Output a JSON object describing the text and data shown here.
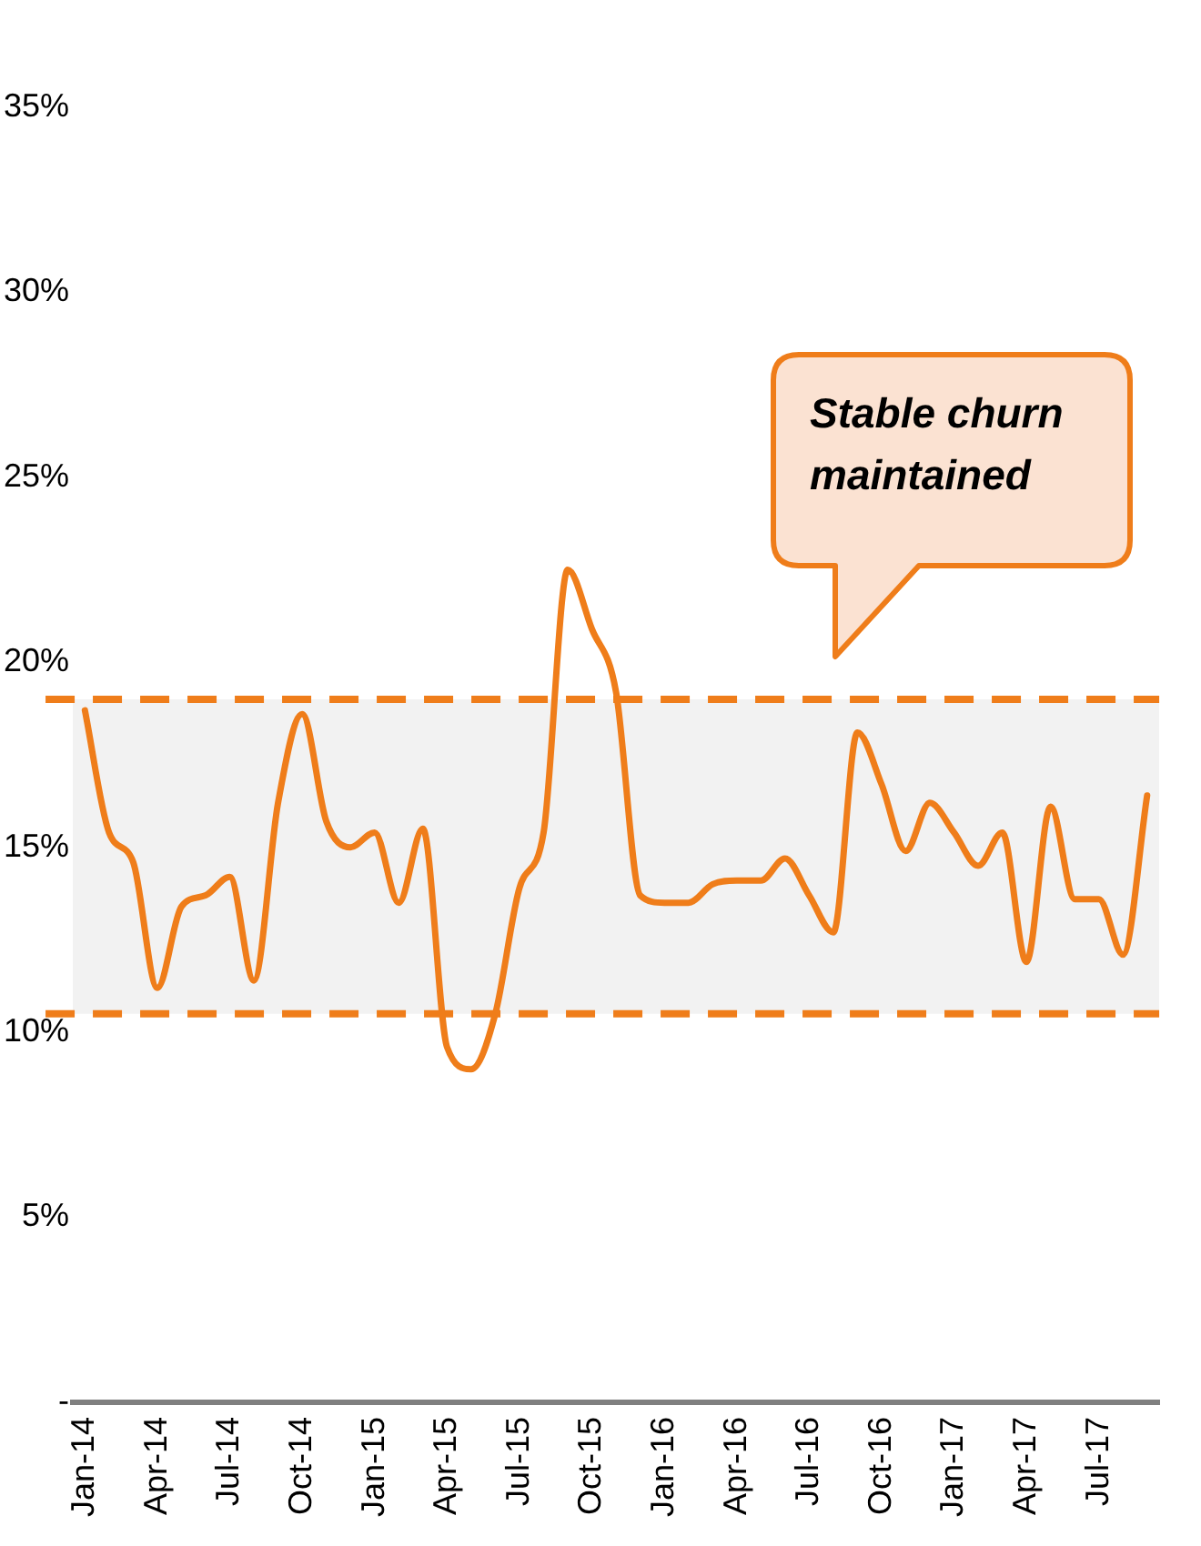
{
  "chart_data": {
    "type": "line",
    "categories": [
      "Jan-14",
      null,
      null,
      "Apr-14",
      null,
      null,
      "Jul-14",
      null,
      null,
      "Oct-14",
      null,
      null,
      "Jan-15",
      null,
      null,
      "Apr-15",
      null,
      null,
      "Jul-15",
      null,
      null,
      "Oct-15",
      null,
      null,
      "Jan-16",
      null,
      null,
      "Apr-16",
      null,
      null,
      "Jul-16",
      null,
      null,
      "Oct-16",
      null,
      null,
      "Jan-17",
      null,
      null,
      "Apr-17",
      null,
      null,
      "Jul-17",
      null,
      null
    ],
    "series": [
      {
        "color": "#ef7d1a",
        "values": [
          18.7,
          15.4,
          14.6,
          11.2,
          13.4,
          13.7,
          14.2,
          11.4,
          16.2,
          18.6,
          15.7,
          15.0,
          15.4,
          13.5,
          15.5,
          9.6,
          9.0,
          10.5,
          13.9,
          15.4,
          22.5,
          20.9,
          19.2,
          13.7,
          13.5,
          13.5,
          14.0,
          14.1,
          14.1,
          14.7,
          13.7,
          12.7,
          18.1,
          16.7,
          14.9,
          16.2,
          15.4,
          14.5,
          15.4,
          11.9,
          16.1,
          13.6,
          13.6,
          12.1,
          16.4
        ]
      }
    ],
    "ylim": [
      0,
      35
    ],
    "yticks": [
      {
        "value": 0,
        "label": "-"
      },
      {
        "value": 5,
        "label": "5%"
      },
      {
        "value": 10,
        "label": "10%"
      },
      {
        "value": 15,
        "label": "15%"
      },
      {
        "value": 20,
        "label": "20%"
      },
      {
        "value": 25,
        "label": "25%"
      },
      {
        "value": 30,
        "label": "30%"
      },
      {
        "value": 35,
        "label": "35%"
      }
    ],
    "bands": [
      {
        "axis": "y",
        "from": 10.5,
        "to": 19,
        "color": "#f2f2f2"
      }
    ],
    "ref_lines": [
      {
        "axis": "y",
        "value": 19,
        "color": "#ef7d1a",
        "line_style": "dashed"
      },
      {
        "axis": "y",
        "value": 10.5,
        "color": "#ef7d1a",
        "line_style": "dashed"
      }
    ],
    "annotations": [
      "Stable churn maintained"
    ],
    "grid": false,
    "legend": false,
    "marker": "none",
    "line_style": "solid"
  }
}
